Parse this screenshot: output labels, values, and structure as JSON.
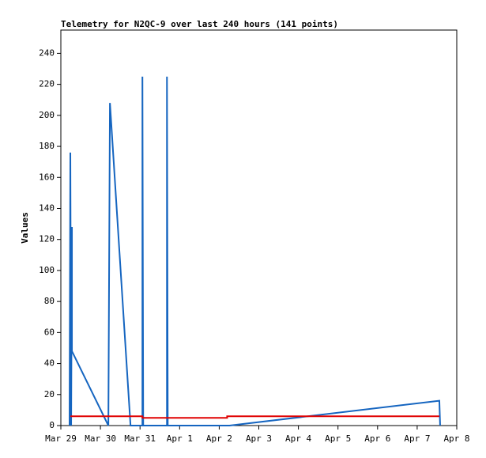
{
  "chart_data": {
    "type": "line",
    "title": "Telemetry for N2QC-9 over last 240 hours (141 points)",
    "y_label": "Values",
    "xlim": [
      0,
      10
    ],
    "xticks": [
      {
        "value": 0,
        "label": "Mar 29"
      },
      {
        "value": 1,
        "label": "Mar 30"
      },
      {
        "value": 2,
        "label": "Mar 31"
      },
      {
        "value": 3,
        "label": "Apr 1"
      },
      {
        "value": 4,
        "label": "Apr 2"
      },
      {
        "value": 5,
        "label": "Apr 3"
      },
      {
        "value": 6,
        "label": "Apr 4"
      },
      {
        "value": 7,
        "label": "Apr 5"
      },
      {
        "value": 8,
        "label": "Apr 6"
      },
      {
        "value": 9,
        "label": "Apr 7"
      },
      {
        "value": 10,
        "label": "Apr 8"
      }
    ],
    "ylim": [
      0,
      255
    ],
    "yticks": [
      0,
      20,
      40,
      60,
      80,
      100,
      120,
      140,
      160,
      180,
      200,
      220,
      240
    ],
    "series": [
      {
        "color": "#1565c0",
        "x": [
          0.22,
          0.24,
          0.26,
          0.28,
          0.28,
          1.2,
          1.24,
          1.26,
          1.76,
          2.06,
          2.06,
          2.08,
          2.68,
          2.68,
          2.7,
          4.26,
          9.56,
          9.58
        ],
        "values": [
          0,
          176,
          0,
          128,
          48,
          0,
          208,
          200,
          0,
          0,
          225,
          0,
          0,
          225,
          0,
          0,
          16,
          0
        ]
      },
      {
        "color": "#e00000",
        "x": [
          0.24,
          2.06,
          2.06,
          4.2,
          4.2,
          9.56
        ],
        "values": [
          6,
          6,
          5,
          5,
          6,
          6
        ]
      }
    ]
  }
}
